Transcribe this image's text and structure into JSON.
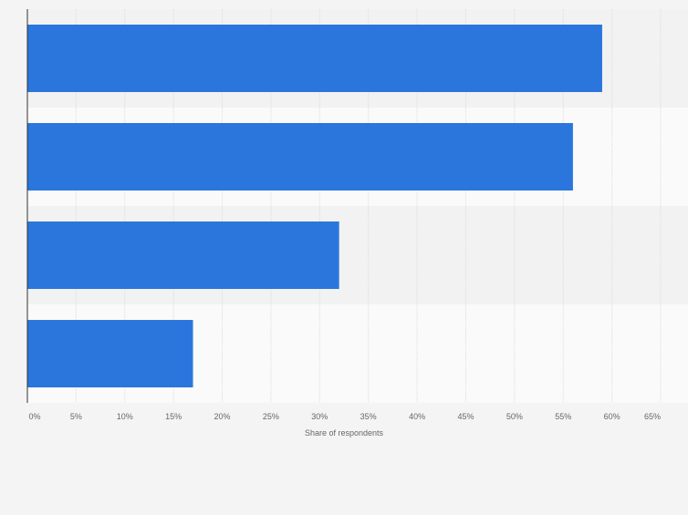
{
  "chart_data": {
    "type": "bar",
    "orientation": "horizontal",
    "categories": [
      "",
      "",
      "",
      ""
    ],
    "values": [
      59,
      56,
      32,
      17
    ],
    "xlabel": "Share of respondents",
    "ylabel": "",
    "xlim": [
      0,
      65
    ],
    "tick_values": [
      0,
      5,
      10,
      15,
      20,
      25,
      30,
      35,
      40,
      45,
      50,
      55,
      60,
      65
    ],
    "tick_labels": [
      "0%",
      "5%",
      "10%",
      "15%",
      "20%",
      "25%",
      "30%",
      "35%",
      "40%",
      "45%",
      "50%",
      "55%",
      "60%",
      "65%"
    ],
    "grid": true,
    "bar_color": "#2a76dd",
    "band_colors": [
      "#f2f2f2",
      "#fafafa"
    ],
    "grid_color": "#dcdcdc",
    "axis_color": "#333333",
    "tick_label_color": "#666666"
  }
}
